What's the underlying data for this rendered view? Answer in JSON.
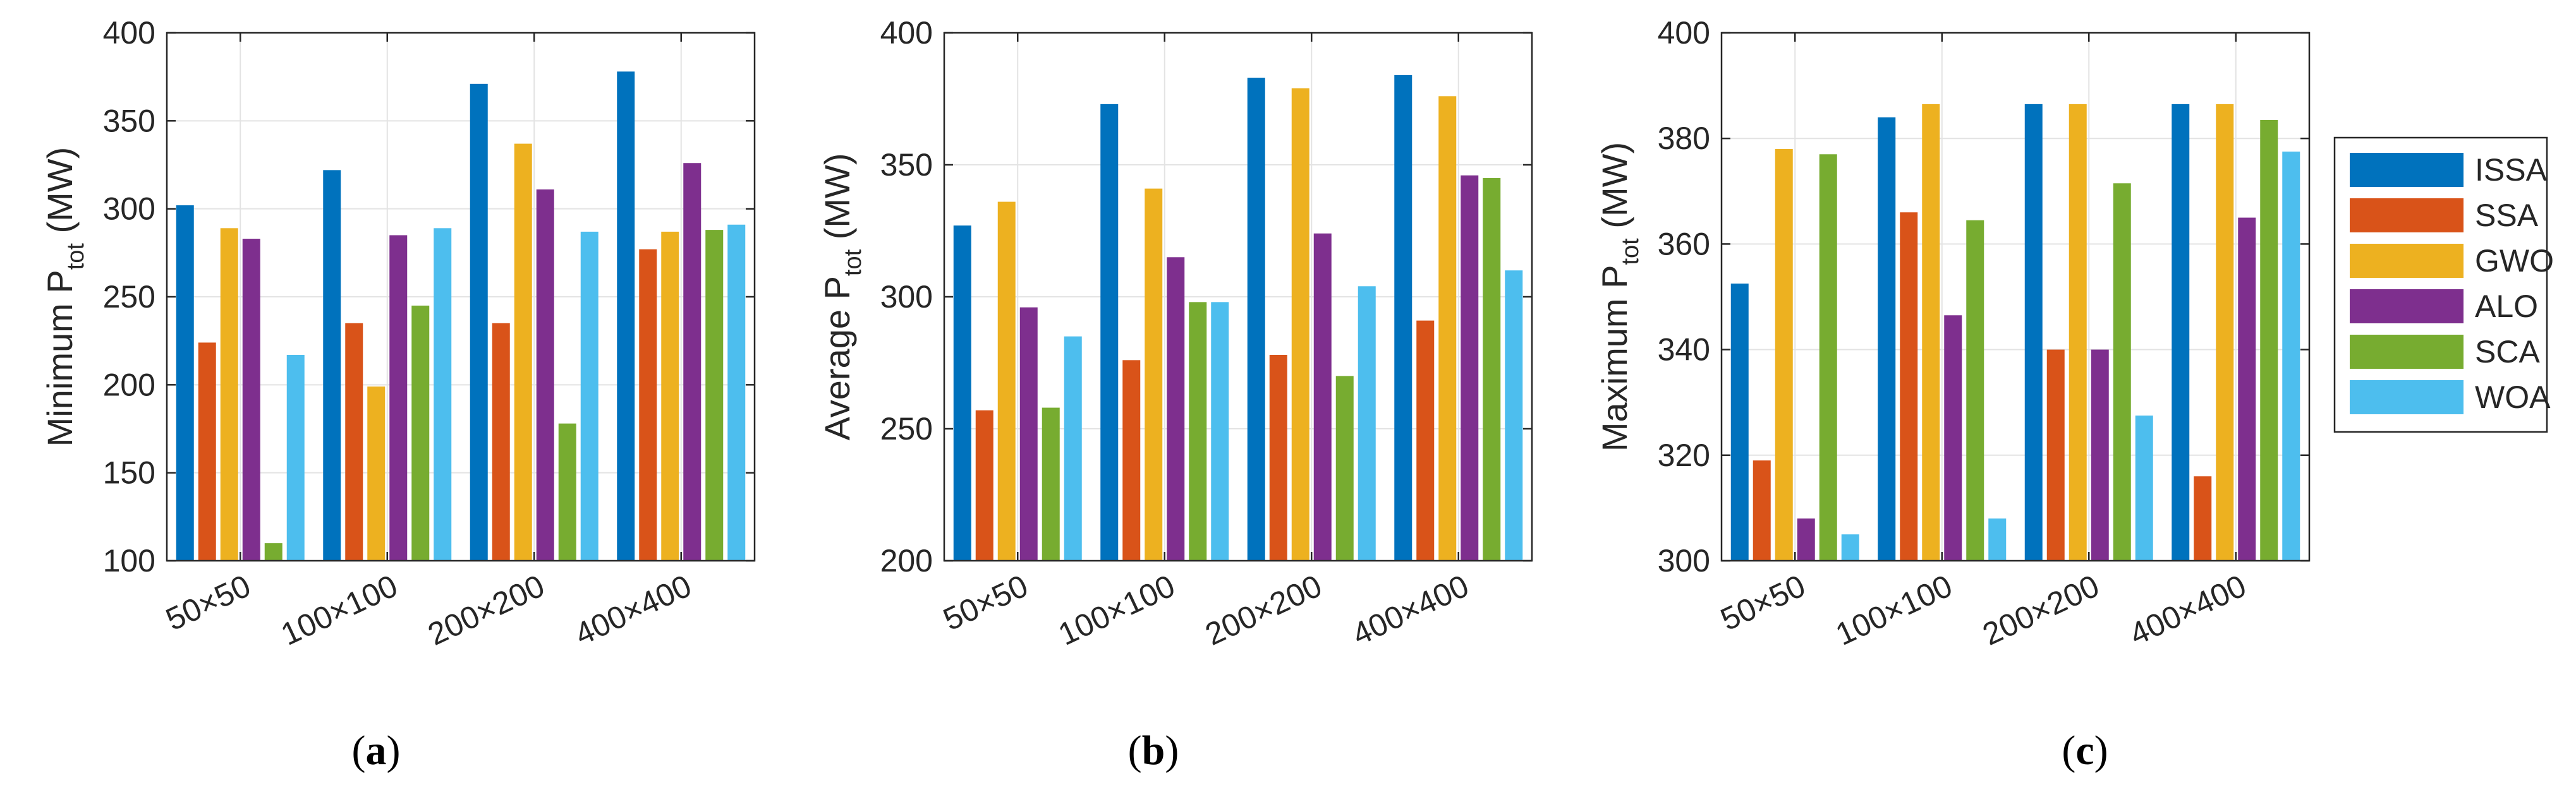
{
  "colors": {
    "ISSA": "#0072BD",
    "SSA": "#D95319",
    "GWO": "#EDB120",
    "ALO": "#7E2F8E",
    "SCA": "#77AC30",
    "WOA": "#4DBEEE"
  },
  "legend": [
    "ISSA",
    "SSA",
    "GWO",
    "ALO",
    "SCA",
    "WOA"
  ],
  "chart_data": [
    {
      "type": "bar",
      "panel_label": {
        "open": "(",
        "letter": "a",
        "close": ")"
      },
      "ylabel": {
        "prefix": "Minimum P",
        "sub": "tot",
        "suffix": " (MW)"
      },
      "ylim": [
        100,
        400
      ],
      "yticks": [
        "100",
        "150",
        "200",
        "250",
        "300",
        "350",
        "400"
      ],
      "grid": true,
      "categories": [
        "50×50",
        "100×100",
        "200×200",
        "400×400"
      ],
      "series": [
        {
          "name": "ISSA",
          "values": [
            302,
            322,
            371,
            378
          ]
        },
        {
          "name": "SSA",
          "values": [
            224,
            235,
            235,
            277
          ]
        },
        {
          "name": "GWO",
          "values": [
            289,
            199,
            337,
            287
          ]
        },
        {
          "name": "ALO",
          "values": [
            283,
            285,
            311,
            326
          ]
        },
        {
          "name": "SCA",
          "values": [
            110,
            245,
            178,
            288
          ]
        },
        {
          "name": "WOA",
          "values": [
            217,
            289,
            287,
            291
          ]
        }
      ]
    },
    {
      "type": "bar",
      "panel_label": {
        "open": "(",
        "letter": "b",
        "close": ")"
      },
      "ylabel": {
        "prefix": "Average P",
        "sub": "tot",
        "suffix": " (MW)"
      },
      "ylim": [
        200,
        400
      ],
      "yticks": [
        "200",
        "250",
        "300",
        "350",
        "400"
      ],
      "grid": true,
      "categories": [
        "50×50",
        "100×100",
        "200×200",
        "400×400"
      ],
      "series": [
        {
          "name": "ISSA",
          "values": [
            327,
            373,
            383,
            384
          ]
        },
        {
          "name": "SSA",
          "values": [
            257,
            276,
            278,
            291
          ]
        },
        {
          "name": "GWO",
          "values": [
            336,
            341,
            379,
            376
          ]
        },
        {
          "name": "ALO",
          "values": [
            296,
            315,
            324,
            346
          ]
        },
        {
          "name": "SCA",
          "values": [
            258,
            298,
            270,
            345
          ]
        },
        {
          "name": "WOA",
          "values": [
            285,
            298,
            304,
            310
          ]
        }
      ]
    },
    {
      "type": "bar",
      "panel_label": {
        "open": "(",
        "letter": "c",
        "close": ")"
      },
      "ylabel": {
        "prefix": "Maximum P",
        "sub": "tot",
        "suffix": " (MW)"
      },
      "ylim": [
        300,
        400
      ],
      "yticks": [
        "300",
        "320",
        "340",
        "360",
        "380",
        "400"
      ],
      "grid": true,
      "categories": [
        "50×50",
        "100×100",
        "200×200",
        "400×400"
      ],
      "series": [
        {
          "name": "ISSA",
          "values": [
            352.5,
            384,
            386.5,
            386.5
          ]
        },
        {
          "name": "SSA",
          "values": [
            319,
            366,
            340,
            316
          ]
        },
        {
          "name": "GWO",
          "values": [
            378,
            386.5,
            386.5,
            386.5
          ]
        },
        {
          "name": "ALO",
          "values": [
            308,
            346.5,
            340,
            365
          ]
        },
        {
          "name": "SCA",
          "values": [
            377,
            364.5,
            371.5,
            383.5
          ]
        },
        {
          "name": "WOA",
          "values": [
            305,
            308,
            327.5,
            377.5
          ]
        }
      ]
    }
  ]
}
